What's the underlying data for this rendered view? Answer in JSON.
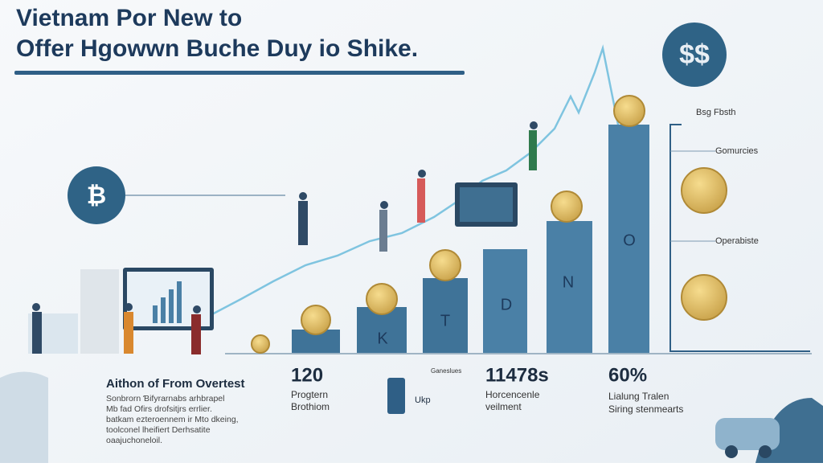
{
  "header": {
    "title_line_1": "Vietnam Por New to",
    "title_line_2": "Offer Hgowwn Buche Duy io Shike."
  },
  "badges": {
    "top": "$$",
    "left": "₿"
  },
  "bars": {
    "labels": [
      "K",
      "T",
      "D",
      "N",
      "O"
    ]
  },
  "side_labels": [
    "Bsg Fbsth",
    "Gomurcies",
    "Operabiste"
  ],
  "intro": {
    "heading": "Aithon of From Overtest",
    "lines": [
      "Sonbrorn Ɓifyrarnabs arhbrapel",
      "Mb fad Ofirs drofsitjrs errlier.",
      "batkam ezteroennem ir Mto dkeing,",
      "toolconel lheifiert Derhsatite",
      "oaajuchoneloil."
    ]
  },
  "stats": [
    {
      "value": "120",
      "lines": [
        "Progtern",
        "Brothiom"
      ]
    },
    {
      "value": "11478s",
      "lines": [
        "Horcencenle",
        "veilment"
      ]
    },
    {
      "value": "60%",
      "lines": [
        "Lialung Tralen",
        "Siring stenmearts"
      ]
    }
  ],
  "device": {
    "caption": "Ganeslues",
    "tag": "Ukp"
  }
}
